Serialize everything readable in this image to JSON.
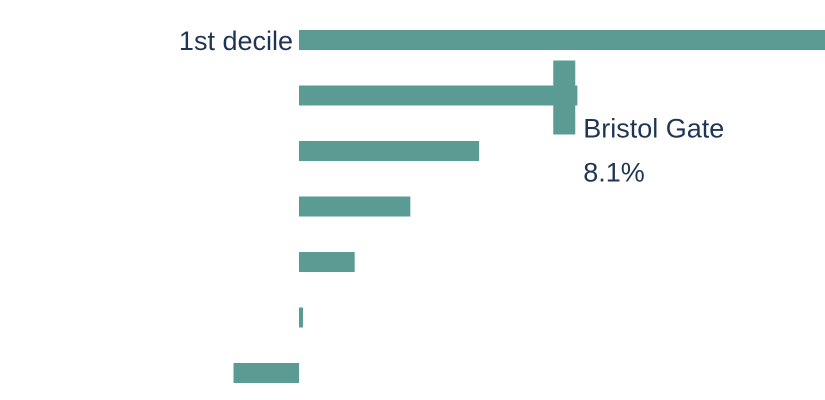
{
  "chart_data": {
    "type": "bar",
    "orientation": "horizontal",
    "categories": [
      "1st decile",
      "",
      "",
      "",
      "",
      "",
      ""
    ],
    "values": [
      16.1,
      8.5,
      5.5,
      3.4,
      1.7,
      0.1,
      -2.0
    ],
    "xlim": [
      -2.5,
      16.1
    ],
    "bar_color": "#5a9b94",
    "text_color": "#1f3555",
    "marker": {
      "name": "Bristol Gate",
      "value_label": "8.1%",
      "value": 8.1,
      "category_index": 1,
      "color": "#5a9b94"
    }
  }
}
